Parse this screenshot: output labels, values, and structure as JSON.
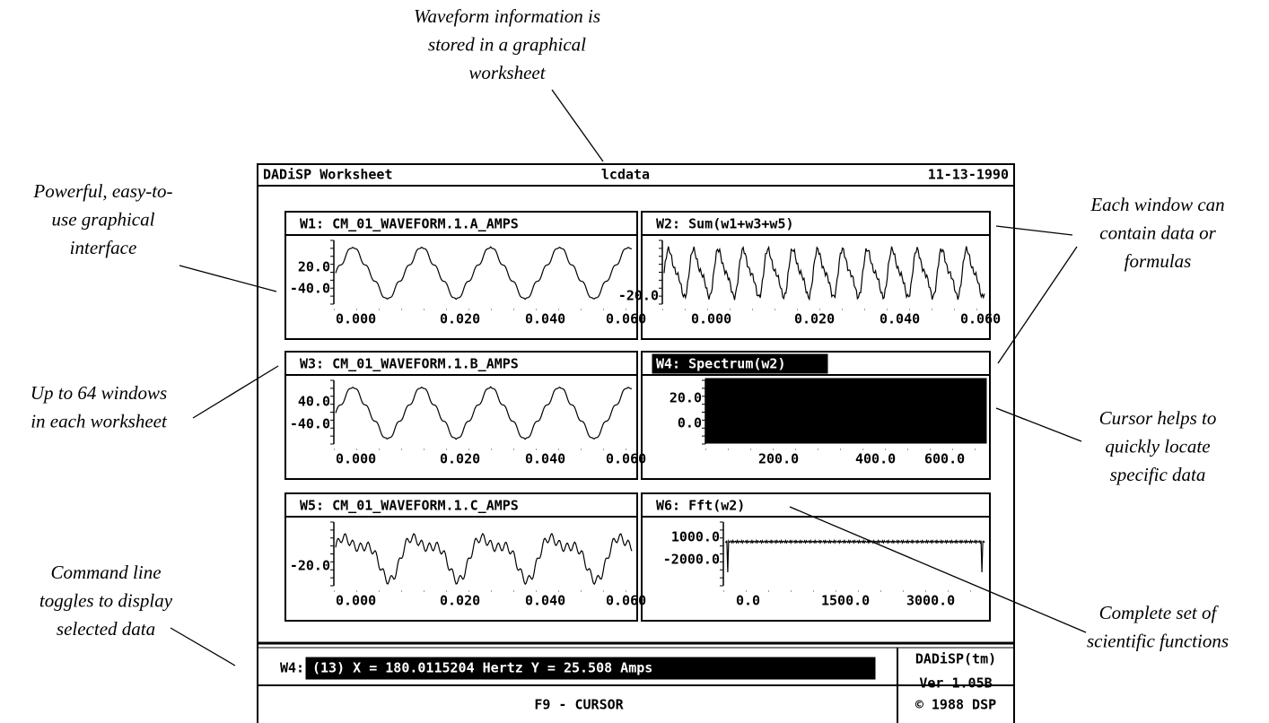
{
  "header": {
    "title": "DADiSP Worksheet",
    "file": "lcdata",
    "date": "11-13-1990"
  },
  "windows": [
    {
      "title": "W1: CM_01_WAVEFORM.1.A_AMPS",
      "yticks": [
        "20.0",
        "-40.0"
      ],
      "xticks": [
        "0.000",
        "0.020",
        "0.040",
        "0.060"
      ]
    },
    {
      "title": "W2: Sum(w1+w3+w5)",
      "yticks": [
        "-20.0"
      ],
      "xticks": [
        "0.000",
        "0.020",
        "0.040",
        "0.060"
      ]
    },
    {
      "title": "W3: CM_01_WAVEFORM.1.B_AMPS",
      "yticks": [
        "40.0",
        "-40.0"
      ],
      "xticks": [
        "0.000",
        "0.020",
        "0.040",
        "0.060"
      ]
    },
    {
      "title": "W4: Spectrum(w2)",
      "yticks": [
        "20.0",
        "0.0"
      ],
      "xticks": [
        "200.0",
        "400.0",
        "600.0"
      ]
    },
    {
      "title": "W5: CM_01_WAVEFORM.1.C_AMPS",
      "yticks": [
        "-20.0"
      ],
      "xticks": [
        "0.000",
        "0.020",
        "0.040",
        "0.060"
      ]
    },
    {
      "title": "W6: Fft(w2)",
      "yticks": [
        "1000.0",
        "-2000.0"
      ],
      "xticks": [
        "0.0",
        "1500.0",
        "3000.0"
      ]
    }
  ],
  "command": {
    "prefix": "W4:",
    "text": "(13) X = 180.0115204 Hertz  Y = 25.508 Amps",
    "key": "F9 - CURSOR"
  },
  "version": [
    "DADiSP(tm)",
    "Ver 1.05B",
    "© 1988 DSP"
  ],
  "annotations": [
    {
      "lines": [
        "Waveform information is",
        "stored in a graphical",
        "worksheet"
      ]
    },
    {
      "lines": [
        "Powerful, easy-to-",
        "use graphical",
        "interface"
      ]
    },
    {
      "lines": [
        "Up to 64 windows",
        "in each worksheet"
      ]
    },
    {
      "lines": [
        "Command line",
        "toggles to display",
        "selected data"
      ]
    },
    {
      "lines": [
        "Each window can",
        "contain data or",
        "formulas"
      ]
    },
    {
      "lines": [
        "Cursor helps to",
        "quickly locate",
        "specific data"
      ]
    },
    {
      "lines": [
        "Complete set of",
        "scientific functions"
      ]
    }
  ]
}
